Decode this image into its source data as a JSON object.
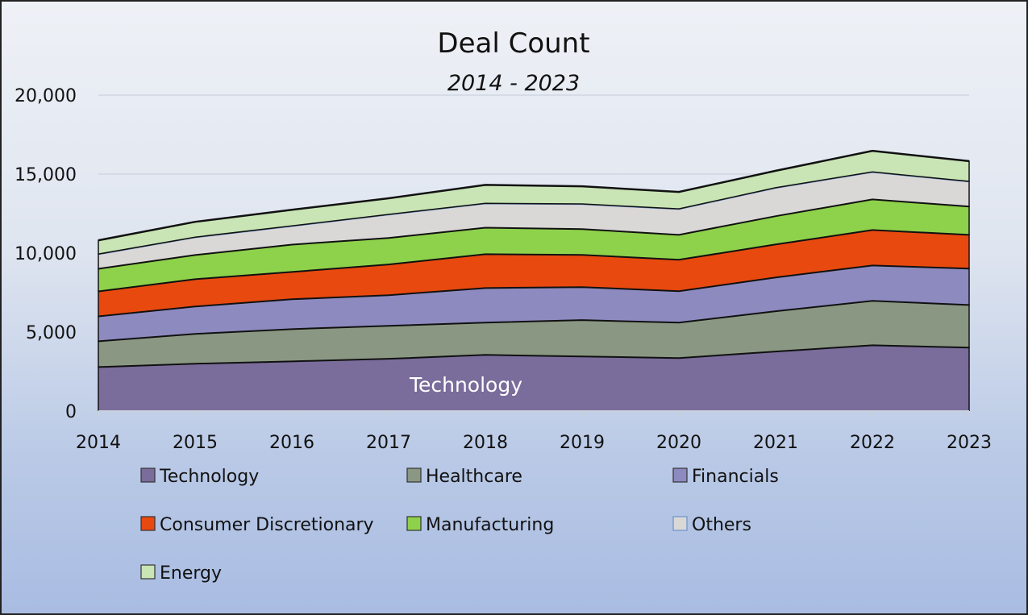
{
  "chart_data": {
    "type": "area",
    "stacked": true,
    "title": "Deal Count",
    "subtitle": "2014 - 2023",
    "xlabel": "",
    "ylabel": "",
    "ylim": [
      0,
      20000
    ],
    "yticks": [
      "0",
      "5,000",
      "10,000",
      "15,000",
      "20,000"
    ],
    "ytick_values": [
      0,
      5000,
      10000,
      15000,
      20000
    ],
    "grid": true,
    "legend": "bottom",
    "annotation": "Technology",
    "categories": [
      "2014",
      "2015",
      "2016",
      "2017",
      "2018",
      "2019",
      "2020",
      "2021",
      "2022",
      "2023"
    ],
    "series": [
      {
        "name": "Technology",
        "color": "#7a6c9b",
        "values": [
          2800,
          3010,
          3160,
          3320,
          3570,
          3470,
          3370,
          3780,
          4180,
          4030
        ]
      },
      {
        "name": "Healthcare",
        "color": "#8a9883",
        "values": [
          1630,
          1890,
          2040,
          2090,
          2040,
          2300,
          2240,
          2550,
          2810,
          2700
        ]
      },
      {
        "name": "Financials",
        "color": "#8d8ac0",
        "values": [
          1580,
          1730,
          1890,
          1940,
          2190,
          2090,
          1990,
          2140,
          2240,
          2300
        ]
      },
      {
        "name": "Consumer Discretionary",
        "color": "#e8490f",
        "values": [
          1580,
          1730,
          1730,
          1940,
          2140,
          2040,
          1990,
          2090,
          2240,
          2140
        ]
      },
      {
        "name": "Manufacturing",
        "color": "#8ed14b",
        "values": [
          1430,
          1530,
          1730,
          1680,
          1680,
          1630,
          1580,
          1790,
          1940,
          1790
        ]
      },
      {
        "name": "Others",
        "color": "#dad7d7",
        "edge": "#6b93c9",
        "values": [
          920,
          1120,
          1170,
          1480,
          1530,
          1580,
          1630,
          1790,
          1730,
          1580
        ]
      },
      {
        "name": "Energy",
        "color": "#c9e4b5",
        "values": [
          870,
          970,
          1020,
          1020,
          1170,
          1120,
          1070,
          1070,
          1330,
          1280
        ]
      }
    ]
  }
}
